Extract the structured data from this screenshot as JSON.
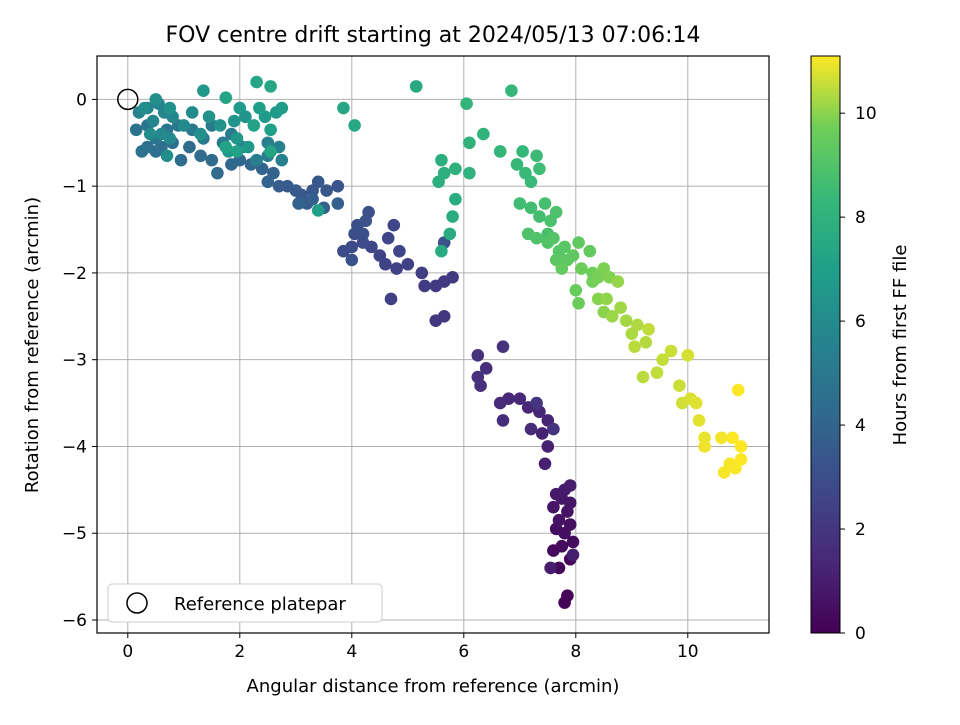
{
  "chart_data": {
    "type": "scatter",
    "title": "FOV centre drift starting at 2024/05/13 07:06:14",
    "xlabel": "Angular distance from reference (arcmin)",
    "ylabel": "Rotation from reference (arcmin)",
    "xlim": [
      -0.55,
      11.45
    ],
    "ylim": [
      -6.15,
      0.5
    ],
    "xticks": [
      0,
      2,
      4,
      6,
      8,
      10
    ],
    "yticks": [
      0,
      -1,
      -2,
      -3,
      -4,
      -5,
      -6
    ],
    "grid": true,
    "colormap": "viridis",
    "colorbar": {
      "label": "Hours from first FF file",
      "range": [
        0,
        11.1
      ],
      "ticks": [
        0,
        2,
        4,
        6,
        8,
        10
      ]
    },
    "legend": {
      "entries": [
        "Reference platepar"
      ],
      "placement": "lower-left"
    },
    "reference_point": {
      "x": 0,
      "y": 0
    },
    "points": [
      [
        7.8,
        -5.8,
        0.1
      ],
      [
        7.85,
        -5.72,
        0.12
      ],
      [
        7.7,
        -5.4,
        0.2
      ],
      [
        7.9,
        -5.3,
        0.25
      ],
      [
        7.6,
        -5.2,
        0.3
      ],
      [
        7.75,
        -5.15,
        0.35
      ],
      [
        7.95,
        -5.1,
        0.4
      ],
      [
        7.8,
        -5.0,
        0.45
      ],
      [
        7.65,
        -4.95,
        0.5
      ],
      [
        7.9,
        -4.9,
        0.55
      ],
      [
        7.7,
        -4.85,
        0.6
      ],
      [
        7.85,
        -4.75,
        0.65
      ],
      [
        7.6,
        -4.7,
        0.7
      ],
      [
        7.9,
        -4.65,
        0.75
      ],
      [
        7.75,
        -4.6,
        0.8
      ],
      [
        7.65,
        -4.55,
        0.85
      ],
      [
        7.8,
        -4.5,
        0.9
      ],
      [
        7.9,
        -4.45,
        0.95
      ],
      [
        7.55,
        -5.4,
        1.0
      ],
      [
        7.95,
        -5.25,
        1.05
      ],
      [
        7.45,
        -4.2,
        1.1
      ],
      [
        7.5,
        -4.0,
        1.15
      ],
      [
        7.4,
        -3.85,
        1.2
      ],
      [
        7.5,
        -3.7,
        1.25
      ],
      [
        7.35,
        -3.6,
        1.3
      ],
      [
        7.15,
        -3.55,
        1.35
      ],
      [
        7.0,
        -3.45,
        1.4
      ],
      [
        6.8,
        -3.45,
        1.45
      ],
      [
        6.65,
        -3.5,
        1.5
      ],
      [
        7.2,
        -3.8,
        1.55
      ],
      [
        6.7,
        -3.7,
        1.6
      ],
      [
        6.4,
        -3.1,
        1.65
      ],
      [
        6.25,
        -3.2,
        1.7
      ],
      [
        6.3,
        -3.3,
        1.75
      ],
      [
        6.25,
        -2.95,
        1.8
      ],
      [
        6.7,
        -2.85,
        1.85
      ],
      [
        7.6,
        -3.8,
        1.9
      ],
      [
        7.3,
        -3.5,
        1.95
      ],
      [
        5.5,
        -2.55,
        2.0
      ],
      [
        5.65,
        -2.5,
        2.05
      ],
      [
        5.5,
        -2.15,
        2.1
      ],
      [
        5.65,
        -2.1,
        2.15
      ],
      [
        5.8,
        -2.05,
        2.2
      ],
      [
        5.3,
        -2.15,
        2.25
      ],
      [
        5.25,
        -2.0,
        2.3
      ],
      [
        4.7,
        -2.3,
        2.35
      ],
      [
        5.0,
        -1.9,
        2.4
      ],
      [
        4.8,
        -1.95,
        2.45
      ],
      [
        4.6,
        -1.9,
        2.5
      ],
      [
        4.5,
        -1.8,
        2.55
      ],
      [
        4.85,
        -1.75,
        2.6
      ],
      [
        4.65,
        -1.6,
        2.65
      ],
      [
        4.75,
        -1.45,
        2.7
      ],
      [
        4.35,
        -1.7,
        2.75
      ],
      [
        4.2,
        -1.65,
        2.8
      ],
      [
        4.0,
        -1.7,
        2.85
      ],
      [
        3.85,
        -1.75,
        2.9
      ],
      [
        4.05,
        -1.55,
        2.95
      ],
      [
        4.1,
        -1.45,
        3.0
      ],
      [
        4.3,
        -1.3,
        3.05
      ],
      [
        4.2,
        -1.55,
        3.1
      ],
      [
        5.65,
        -1.65,
        3.15
      ],
      [
        4.0,
        -1.85,
        3.2
      ],
      [
        4.25,
        -1.4,
        3.25
      ],
      [
        3.75,
        -1.0,
        3.3
      ],
      [
        3.55,
        -1.05,
        3.35
      ],
      [
        3.4,
        -0.95,
        3.4
      ],
      [
        3.3,
        -1.05,
        3.45
      ],
      [
        3.1,
        -1.1,
        3.5
      ],
      [
        3.0,
        -1.05,
        3.55
      ],
      [
        2.85,
        -1.0,
        3.6
      ],
      [
        2.7,
        -1.0,
        3.65
      ],
      [
        3.2,
        -1.2,
        3.7
      ],
      [
        3.3,
        -1.15,
        3.75
      ],
      [
        3.5,
        -1.25,
        3.8
      ],
      [
        3.75,
        -1.2,
        3.85
      ],
      [
        3.05,
        -1.2,
        3.9
      ],
      [
        2.6,
        -0.85,
        3.95
      ],
      [
        2.5,
        -0.95,
        4.0
      ],
      [
        2.4,
        -0.8,
        4.05
      ],
      [
        2.2,
        -0.75,
        4.1
      ],
      [
        2.0,
        -0.7,
        4.15
      ],
      [
        1.85,
        -0.75,
        4.2
      ],
      [
        1.6,
        -0.85,
        4.25
      ],
      [
        1.5,
        -0.7,
        4.3
      ],
      [
        1.3,
        -0.65,
        4.35
      ],
      [
        1.1,
        -0.55,
        4.4
      ],
      [
        0.95,
        -0.7,
        4.45
      ],
      [
        0.8,
        -0.5,
        4.5
      ],
      [
        0.6,
        -0.55,
        4.55
      ],
      [
        0.5,
        -0.6,
        4.6
      ],
      [
        0.35,
        -0.55,
        4.65
      ],
      [
        0.25,
        -0.6,
        4.7
      ],
      [
        0.15,
        -0.35,
        4.75
      ],
      [
        0.35,
        -0.3,
        4.8
      ],
      [
        0.5,
        -0.45,
        4.85
      ],
      [
        0.7,
        -0.35,
        4.9
      ],
      [
        0.9,
        -0.3,
        4.95
      ],
      [
        1.15,
        -0.35,
        5.0
      ],
      [
        1.35,
        -0.45,
        5.05
      ],
      [
        1.5,
        -0.3,
        5.1
      ],
      [
        1.7,
        -0.5,
        5.15
      ],
      [
        1.85,
        -0.4,
        5.2
      ],
      [
        2.05,
        -0.55,
        5.25
      ],
      [
        2.3,
        -0.7,
        5.3
      ],
      [
        2.5,
        -0.65,
        5.35
      ],
      [
        2.75,
        -0.7,
        5.4
      ],
      [
        2.7,
        -0.55,
        5.45
      ],
      [
        2.5,
        -0.5,
        5.5
      ],
      [
        0.2,
        -0.15,
        5.55
      ],
      [
        0.35,
        -0.1,
        5.6
      ],
      [
        0.55,
        -0.05,
        5.65
      ],
      [
        0.65,
        -0.15,
        5.7
      ],
      [
        0.45,
        -0.25,
        5.75
      ],
      [
        0.8,
        -0.2,
        5.8
      ],
      [
        0.6,
        -0.4,
        5.85
      ],
      [
        0.75,
        -0.45,
        5.9
      ],
      [
        1.0,
        -0.3,
        5.95
      ],
      [
        1.15,
        -0.15,
        6.0
      ],
      [
        0.7,
        -0.65,
        6.05
      ],
      [
        0.4,
        -0.4,
        6.1
      ],
      [
        0.3,
        -0.1,
        6.15
      ],
      [
        0.5,
        0.0,
        6.2
      ],
      [
        0.75,
        -0.1,
        6.25
      ],
      [
        1.3,
        -0.4,
        6.3
      ],
      [
        1.45,
        -0.2,
        6.35
      ],
      [
        1.65,
        -0.3,
        6.4
      ],
      [
        1.9,
        -0.25,
        6.45
      ],
      [
        2.1,
        -0.2,
        6.5
      ],
      [
        1.8,
        -0.6,
        6.55
      ],
      [
        1.95,
        -0.45,
        6.6
      ],
      [
        2.15,
        -0.55,
        6.65
      ],
      [
        1.35,
        0.1,
        6.7
      ],
      [
        2.0,
        -0.1,
        6.75
      ],
      [
        2.45,
        -0.2,
        6.8
      ],
      [
        2.65,
        -0.15,
        6.85
      ],
      [
        2.75,
        -0.1,
        6.9
      ],
      [
        2.35,
        -0.1,
        6.95
      ],
      [
        3.4,
        -1.28,
        7.0
      ],
      [
        2.55,
        -0.35,
        7.05
      ],
      [
        2.25,
        -0.3,
        7.1
      ],
      [
        1.95,
        -0.6,
        7.15
      ],
      [
        1.75,
        -0.55,
        7.2
      ],
      [
        2.55,
        -0.6,
        7.25
      ],
      [
        1.75,
        0.02,
        7.3
      ],
      [
        2.3,
        0.2,
        7.35
      ],
      [
        2.55,
        0.15,
        7.4
      ],
      [
        3.85,
        -0.1,
        7.45
      ],
      [
        4.05,
        -0.3,
        7.5
      ],
      [
        5.15,
        0.15,
        7.55
      ],
      [
        5.6,
        -1.75,
        7.6
      ],
      [
        5.75,
        -1.55,
        7.65
      ],
      [
        5.8,
        -1.35,
        7.7
      ],
      [
        5.85,
        -1.15,
        7.75
      ],
      [
        5.55,
        -0.95,
        7.8
      ],
      [
        5.6,
        -0.7,
        7.85
      ],
      [
        5.65,
        -0.85,
        7.9
      ],
      [
        5.85,
        -0.8,
        7.95
      ],
      [
        6.1,
        -0.85,
        8.0
      ],
      [
        6.1,
        -0.5,
        8.05
      ],
      [
        6.35,
        -0.4,
        8.1
      ],
      [
        6.05,
        -0.05,
        8.15
      ],
      [
        6.65,
        -0.6,
        8.2
      ],
      [
        6.85,
        0.1,
        8.25
      ],
      [
        7.05,
        -0.6,
        8.3
      ],
      [
        6.95,
        -0.75,
        8.35
      ],
      [
        7.1,
        -0.85,
        8.4
      ],
      [
        7.2,
        -0.95,
        8.45
      ],
      [
        7.3,
        -0.65,
        8.5
      ],
      [
        7.35,
        -0.8,
        8.55
      ],
      [
        7.0,
        -1.2,
        8.6
      ],
      [
        7.2,
        -1.25,
        8.65
      ],
      [
        7.35,
        -1.35,
        8.7
      ],
      [
        7.45,
        -1.2,
        8.75
      ],
      [
        7.5,
        -1.55,
        8.8
      ],
      [
        7.55,
        -1.4,
        8.85
      ],
      [
        7.65,
        -1.3,
        8.9
      ],
      [
        7.15,
        -1.55,
        8.95
      ],
      [
        7.3,
        -1.6,
        9.0
      ],
      [
        7.5,
        -1.65,
        9.05
      ],
      [
        7.6,
        -1.6,
        9.1
      ],
      [
        7.7,
        -1.75,
        9.15
      ],
      [
        7.8,
        -1.7,
        9.2
      ],
      [
        7.65,
        -1.85,
        9.25
      ],
      [
        7.85,
        -1.85,
        9.3
      ],
      [
        7.95,
        -1.8,
        9.35
      ],
      [
        8.05,
        -1.65,
        9.4
      ],
      [
        7.75,
        -1.95,
        9.45
      ],
      [
        8.25,
        -1.75,
        9.5
      ],
      [
        8.0,
        -2.2,
        9.55
      ],
      [
        8.05,
        -2.35,
        9.6
      ],
      [
        8.1,
        -1.95,
        9.65
      ],
      [
        8.3,
        -2.0,
        9.7
      ],
      [
        8.3,
        -2.1,
        9.75
      ],
      [
        8.4,
        -2.05,
        9.8
      ],
      [
        8.5,
        -1.95,
        9.85
      ],
      [
        8.6,
        -2.05,
        9.9
      ],
      [
        8.4,
        -2.3,
        9.95
      ],
      [
        8.5,
        -2.45,
        10.0
      ],
      [
        8.55,
        -2.3,
        10.05
      ],
      [
        8.75,
        -2.1,
        10.1
      ],
      [
        8.65,
        -2.5,
        10.15
      ],
      [
        8.8,
        -2.4,
        10.2
      ],
      [
        8.9,
        -2.55,
        10.25
      ],
      [
        9.0,
        -2.7,
        10.3
      ],
      [
        9.1,
        -2.6,
        10.35
      ],
      [
        9.25,
        -2.8,
        10.4
      ],
      [
        9.05,
        -2.85,
        10.45
      ],
      [
        9.3,
        -2.65,
        10.5
      ],
      [
        9.55,
        -3.0,
        10.55
      ],
      [
        9.85,
        -3.3,
        10.6
      ],
      [
        9.9,
        -3.5,
        10.65
      ],
      [
        10.0,
        -2.95,
        10.7
      ],
      [
        10.05,
        -3.45,
        10.75
      ],
      [
        10.15,
        -3.5,
        10.8
      ],
      [
        10.2,
        -3.7,
        10.85
      ],
      [
        10.3,
        -3.9,
        10.9
      ],
      [
        10.3,
        -4.0,
        10.95
      ],
      [
        10.6,
        -3.9,
        11.0
      ],
      [
        10.65,
        -4.3,
        11.02
      ],
      [
        10.75,
        -4.2,
        11.04
      ],
      [
        10.85,
        -4.25,
        11.06
      ],
      [
        10.8,
        -3.9,
        11.08
      ],
      [
        10.95,
        -4.0,
        11.1
      ],
      [
        10.9,
        -3.35,
        11.1
      ],
      [
        10.95,
        -4.15,
        11.08
      ],
      [
        9.45,
        -3.15,
        10.5
      ],
      [
        9.2,
        -3.2,
        10.45
      ],
      [
        9.7,
        -2.9,
        10.6
      ]
    ]
  }
}
